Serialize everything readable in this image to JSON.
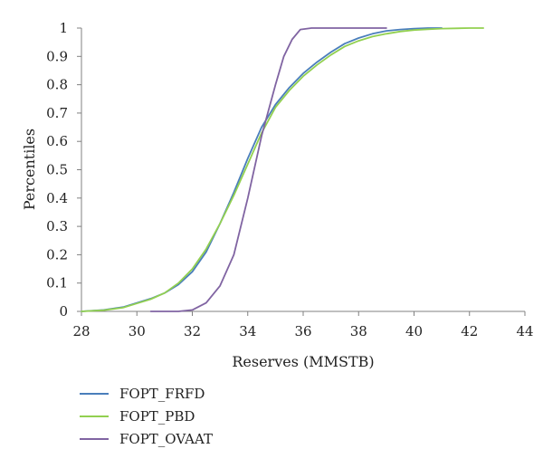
{
  "chart_data": {
    "type": "line",
    "title": "",
    "xlabel": "Reserves (MMSTB)",
    "ylabel": "Percentiles",
    "xlim": [
      28,
      44
    ],
    "ylim": [
      0,
      1
    ],
    "x_ticks": [
      "28",
      "30",
      "32",
      "34",
      "36",
      "38",
      "40",
      "42",
      "44"
    ],
    "y_ticks": [
      "0",
      "0.1",
      "0.2",
      "0.3",
      "0.4",
      "0.5",
      "0.6",
      "0.7",
      "0.8",
      "0.9",
      "1"
    ],
    "grid": false,
    "legend_position": "bottom-left",
    "series": [
      {
        "name": "FOPT_FRFD",
        "color": "#4a7ebb",
        "x": [
          28,
          28.8,
          29.5,
          30,
          30.5,
          31,
          31.5,
          32,
          32.5,
          33,
          33.5,
          34,
          34.5,
          35,
          35.5,
          36,
          36.5,
          37,
          37.5,
          38,
          38.5,
          39,
          39.5,
          40,
          40.5,
          41
        ],
        "y": [
          0,
          0.005,
          0.015,
          0.03,
          0.045,
          0.065,
          0.095,
          0.14,
          0.21,
          0.31,
          0.42,
          0.54,
          0.65,
          0.73,
          0.79,
          0.84,
          0.88,
          0.915,
          0.945,
          0.965,
          0.98,
          0.99,
          0.995,
          0.998,
          1,
          1
        ]
      },
      {
        "name": "FOPT_PBD",
        "color": "#92d050",
        "x": [
          28,
          28.8,
          29.5,
          30,
          30.5,
          31,
          31.5,
          32,
          32.5,
          33,
          33.5,
          34,
          34.5,
          35,
          35.5,
          36,
          36.5,
          37,
          37.5,
          38,
          38.5,
          39,
          39.5,
          40,
          40.5,
          41,
          41.5,
          42,
          42.5
        ],
        "y": [
          0,
          0.004,
          0.013,
          0.028,
          0.043,
          0.065,
          0.1,
          0.15,
          0.22,
          0.31,
          0.41,
          0.52,
          0.63,
          0.72,
          0.78,
          0.83,
          0.87,
          0.905,
          0.935,
          0.955,
          0.97,
          0.98,
          0.988,
          0.993,
          0.996,
          0.998,
          0.999,
          1,
          1
        ]
      },
      {
        "name": "FOPT_OVAAT",
        "color": "#8064a2",
        "x": [
          30.5,
          31.5,
          32,
          32.5,
          33,
          33.5,
          34,
          34.5,
          35,
          35.3,
          35.6,
          35.9,
          36.3,
          36.8,
          37.5,
          38,
          39
        ],
        "y": [
          0,
          0,
          0.005,
          0.03,
          0.09,
          0.2,
          0.4,
          0.62,
          0.8,
          0.9,
          0.96,
          0.995,
          1,
          1,
          1,
          1,
          1
        ]
      }
    ]
  }
}
